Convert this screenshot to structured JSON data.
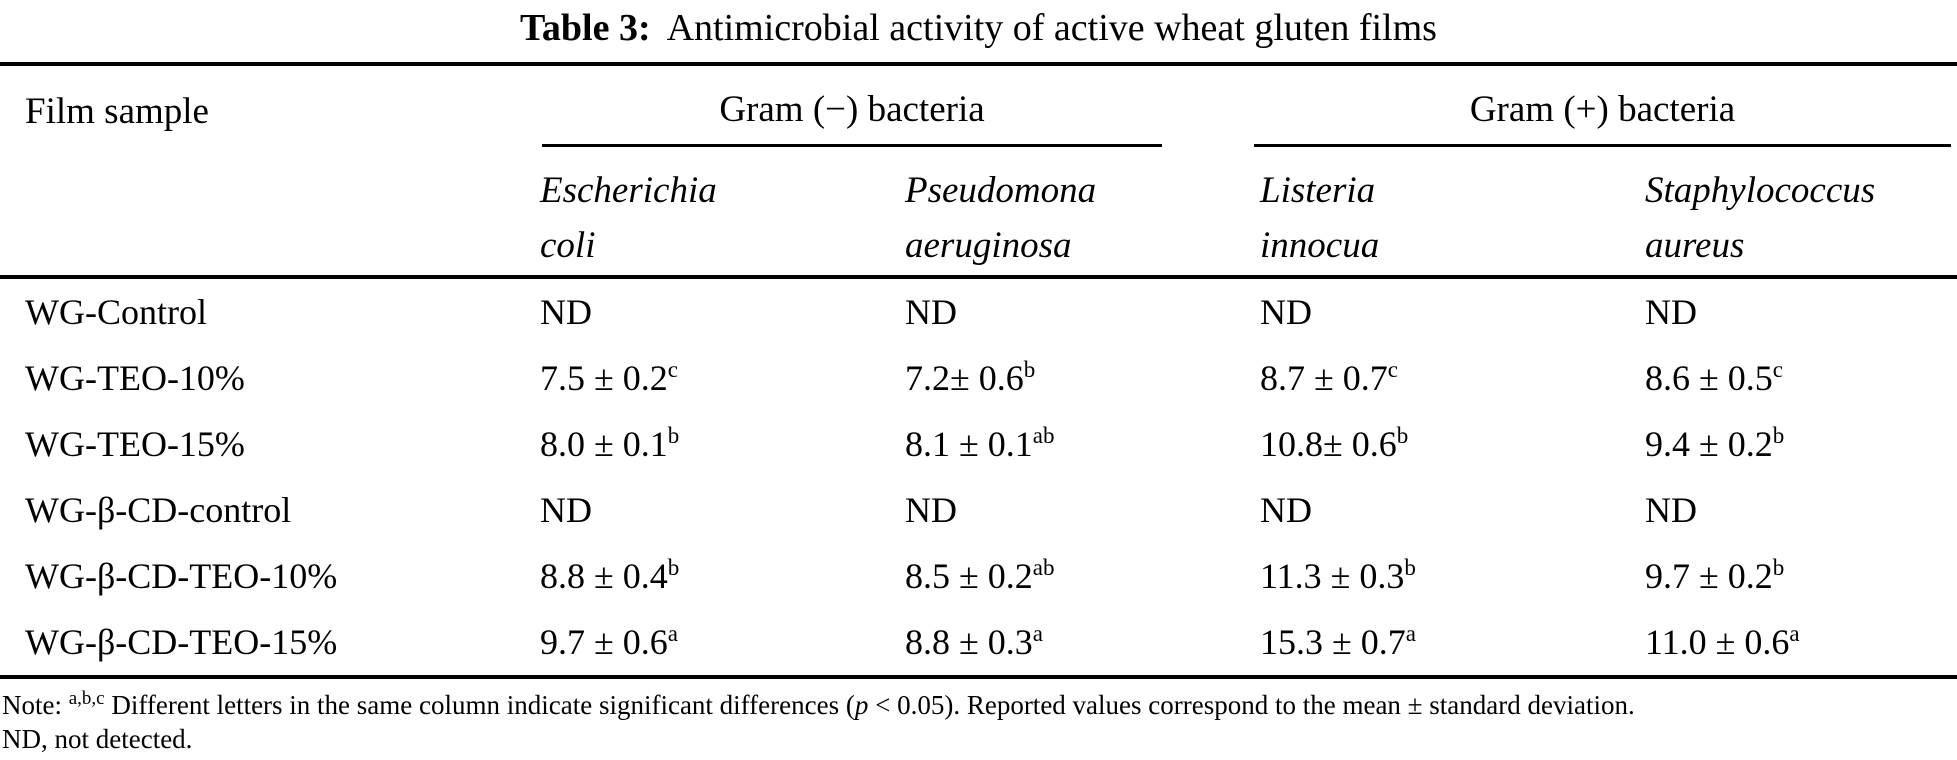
{
  "title": {
    "label": "Table 3:",
    "text": "Antimicrobial activity of active wheat gluten films"
  },
  "table": {
    "row_header": "Film sample",
    "groups": [
      {
        "label": "Gram (−) bacteria",
        "species": [
          {
            "line1": "Escherichia",
            "line2": "coli"
          },
          {
            "line1": "Pseudomona",
            "line2": "aeruginosa"
          }
        ]
      },
      {
        "label": "Gram (+) bacteria",
        "species": [
          {
            "line1": "Listeria",
            "line2": "innocua"
          },
          {
            "line1": "Staphylococcus",
            "line2": "aureus"
          }
        ]
      }
    ],
    "rows": [
      {
        "label": "WG-Control",
        "cells": [
          {
            "value": "ND",
            "sup": ""
          },
          {
            "value": "ND",
            "sup": ""
          },
          {
            "value": "ND",
            "sup": ""
          },
          {
            "value": "ND",
            "sup": ""
          }
        ]
      },
      {
        "label": "WG-TEO-10%",
        "cells": [
          {
            "value": "7.5 ± 0.2",
            "sup": "c"
          },
          {
            "value": "7.2± 0.6",
            "sup": "b"
          },
          {
            "value": "8.7 ± 0.7",
            "sup": "c"
          },
          {
            "value": "8.6 ± 0.5",
            "sup": "c"
          }
        ]
      },
      {
        "label": "WG-TEO-15%",
        "cells": [
          {
            "value": "8.0 ± 0.1",
            "sup": "b"
          },
          {
            "value": "8.1 ± 0.1",
            "sup": "ab"
          },
          {
            "value": "10.8± 0.6",
            "sup": "b"
          },
          {
            "value": "9.4 ± 0.2",
            "sup": "b"
          }
        ]
      },
      {
        "label": "WG-β-CD-control",
        "cells": [
          {
            "value": "ND",
            "sup": ""
          },
          {
            "value": "ND",
            "sup": ""
          },
          {
            "value": "ND",
            "sup": ""
          },
          {
            "value": "ND",
            "sup": ""
          }
        ]
      },
      {
        "label": "WG-β-CD-TEO-10%",
        "cells": [
          {
            "value": "8.8 ± 0.4",
            "sup": "b"
          },
          {
            "value": "8.5 ± 0.2",
            "sup": "ab"
          },
          {
            "value": "11.3 ± 0.3",
            "sup": "b"
          },
          {
            "value": "9.7 ± 0.2",
            "sup": "b"
          }
        ]
      },
      {
        "label": "WG-β-CD-TEO-15%",
        "cells": [
          {
            "value": "9.7 ± 0.6",
            "sup": "a"
          },
          {
            "value": "8.8 ± 0.3",
            "sup": "a"
          },
          {
            "value": "15.3 ± 0.7",
            "sup": "a"
          },
          {
            "value": "11.0 ± 0.6",
            "sup": "a"
          }
        ]
      }
    ]
  },
  "note": {
    "prefix": "Note: ",
    "sup": "a,b,c",
    "body1": " Different letters in the same column indicate significant differences (",
    "p_italic": "p",
    "body2": " < 0.05). Reported values correspond to the mean ± standard deviation.",
    "line2": "ND, not detected."
  }
}
